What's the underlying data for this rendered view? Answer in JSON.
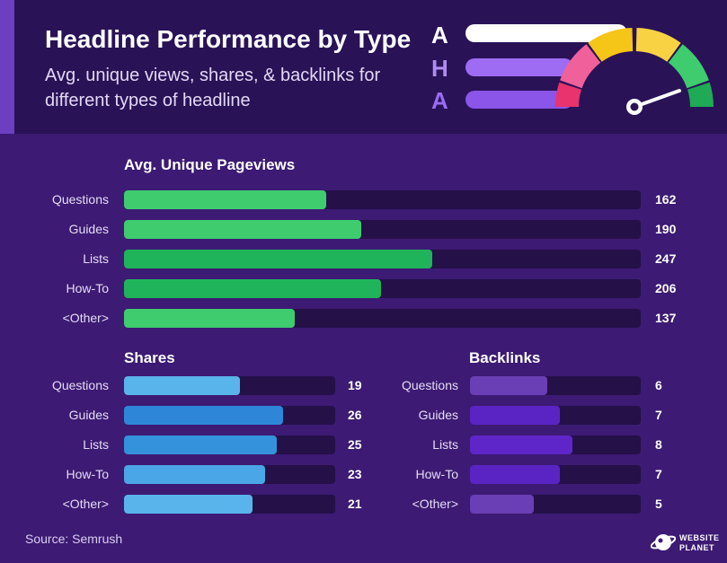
{
  "header": {
    "title": "Headline Performance by Type",
    "subtitle": "Avg. unique views, shares, & backlinks for different types of headline",
    "aha_letters": [
      "A",
      "H",
      "A"
    ]
  },
  "chart_data": [
    {
      "type": "bar",
      "orientation": "horizontal",
      "title": "Avg. Unique Pageviews",
      "categories": [
        "Questions",
        "Guides",
        "Lists",
        "How-To",
        "<Other>"
      ],
      "values": [
        162,
        190,
        247,
        206,
        137
      ],
      "value_labels": [
        "162",
        "190",
        "247",
        "206",
        "137"
      ],
      "colors": [
        "#3ecc6e",
        "#3ecc6e",
        "#20b45a",
        "#20b45a",
        "#3ecc6e"
      ]
    },
    {
      "type": "bar",
      "orientation": "horizontal",
      "title": "Shares",
      "categories": [
        "Questions",
        "Guides",
        "Lists",
        "How-To",
        "<Other>"
      ],
      "values": [
        19,
        26,
        25,
        23,
        21
      ],
      "value_labels": [
        "19",
        "26",
        "25",
        "23",
        "21"
      ],
      "colors": [
        "#5ab4ec",
        "#2e86d8",
        "#3492dc",
        "#4aa6e6",
        "#5ab4ec"
      ]
    },
    {
      "type": "bar",
      "orientation": "horizontal",
      "title": "Backlinks",
      "categories": [
        "Questions",
        "Guides",
        "Lists",
        "How-To",
        "<Other>"
      ],
      "values": [
        6,
        7,
        8,
        7,
        5
      ],
      "value_labels": [
        "6",
        "7",
        "8",
        "7",
        "5"
      ],
      "colors": [
        "#6a3eb4",
        "#5a24c4",
        "#5e26c8",
        "#5a24c4",
        "#6a3eb4"
      ]
    }
  ],
  "footer": {
    "source": "Source: Semrush",
    "logo_line1": "WEBSITE",
    "logo_line2": "PLANET"
  },
  "colors": {
    "background": "#3d1a73",
    "header_background": "#2a1257",
    "track": "#251048",
    "gauge": [
      "#e8336e",
      "#f0609a",
      "#f5c518",
      "#f8d243",
      "#3ecc6e",
      "#1faa55"
    ]
  }
}
